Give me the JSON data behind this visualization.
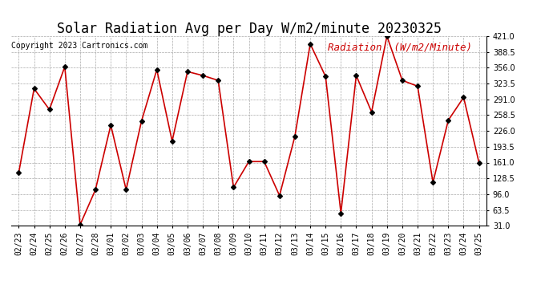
{
  "title": "Solar Radiation Avg per Day W/m2/minute 20230325",
  "copyright": "Copyright 2023 Cartronics.com",
  "legend_label": "Radiation  (W/m2/Minute)",
  "dates": [
    "02/23",
    "02/24",
    "02/25",
    "02/26",
    "02/27",
    "02/28",
    "03/01",
    "03/02",
    "03/03",
    "03/04",
    "03/05",
    "03/06",
    "03/07",
    "03/08",
    "03/09",
    "03/10",
    "03/11",
    "03/12",
    "03/13",
    "03/14",
    "03/15",
    "03/16",
    "03/17",
    "03/18",
    "03/19",
    "03/20",
    "03/21",
    "03/22",
    "03/23",
    "03/24",
    "03/25"
  ],
  "values": [
    140,
    313,
    270,
    358,
    33,
    105,
    238,
    105,
    246,
    352,
    205,
    348,
    340,
    330,
    110,
    163,
    163,
    93,
    215,
    405,
    338,
    57,
    340,
    265,
    421,
    330,
    318,
    120,
    248,
    295,
    161
  ],
  "line_color": "#cc0000",
  "marker": "D",
  "marker_color": "#000000",
  "marker_size": 3,
  "ylim_min": 31.0,
  "ylim_max": 421.0,
  "yticks": [
    31.0,
    63.5,
    96.0,
    128.5,
    161.0,
    193.5,
    226.0,
    258.5,
    291.0,
    323.5,
    356.0,
    388.5,
    421.0
  ],
  "background_color": "#ffffff",
  "grid_color": "#aaaaaa",
  "title_fontsize": 12,
  "copyright_fontsize": 7,
  "legend_fontsize": 9,
  "tick_fontsize": 7,
  "legend_color": "#cc0000"
}
